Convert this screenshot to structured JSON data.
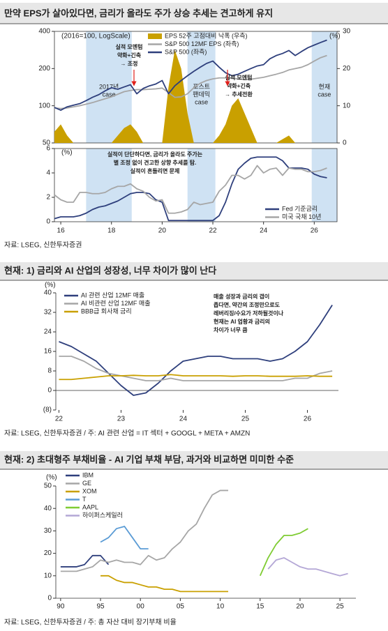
{
  "chart_data": [
    {
      "type": "line",
      "title": "만약 EPS가 살아있다면, 금리가 올라도 주가 상승 추세는 견고하게 유지",
      "y_label": "(2016=100, LogScale)",
      "y2_label": "(%)",
      "y_scale": "log",
      "frame": true,
      "legend": "top-center",
      "region_color": "#cfe2f3",
      "regions": [
        {
          "start": 17,
          "end": 18.8,
          "label": [
            "2017년",
            "case"
          ]
        },
        {
          "start": 21,
          "end": 22.1,
          "label": [
            "포스트",
            "팬데믹",
            "case"
          ]
        },
        {
          "start": 25.9,
          "end": 26.9,
          "label": [
            "현재",
            "case"
          ]
        }
      ],
      "x": [
        15.75,
        16,
        16.25,
        16.5,
        16.75,
        17,
        17.25,
        17.5,
        17.75,
        18,
        18.25,
        18.5,
        18.75,
        19,
        19.25,
        19.5,
        19.75,
        20,
        20.25,
        20.5,
        20.75,
        21,
        21.25,
        21.5,
        21.75,
        22,
        22.25,
        22.5,
        22.75,
        23,
        23.25,
        23.5,
        23.75,
        24,
        24.25,
        24.5,
        24.75,
        25,
        25.25,
        25.5,
        25.75,
        26,
        26.25,
        26.5
      ],
      "xlim": [
        15.75,
        26.9
      ],
      "ylim": [
        50,
        400
      ],
      "yticks": [
        50,
        100,
        200,
        400
      ],
      "y2lim": [
        0,
        30
      ],
      "y2ticks": [
        0,
        10,
        20,
        30
      ],
      "series": [
        {
          "name": "EPS 52주 고점대비 낙폭 (우측)",
          "color": "#c9a000",
          "kind": "area",
          "axis": "y2",
          "values": [
            3,
            5,
            2,
            0,
            0,
            0,
            0,
            0,
            0,
            0,
            2,
            4,
            5,
            3,
            0,
            0,
            0,
            0,
            15,
            25,
            20,
            8,
            0,
            0,
            0,
            0,
            2,
            5,
            10,
            12,
            8,
            4,
            0,
            0,
            0,
            0,
            1,
            2,
            0,
            0,
            0,
            0,
            0,
            0
          ]
        },
        {
          "name": "S&P 500 12MF EPS (좌측)",
          "color": "#a6a6a6",
          "kind": "line",
          "values": [
            96,
            95,
            96,
            98,
            100,
            103,
            106,
            110,
            114,
            118,
            124,
            130,
            133,
            135,
            135,
            136,
            137,
            139,
            128,
            117,
            118,
            125,
            140,
            152,
            160,
            165,
            168,
            168,
            167,
            165,
            163,
            164,
            167,
            170,
            175,
            180,
            186,
            195,
            200,
            205,
            215,
            230,
            245,
            255
          ]
        },
        {
          "name": "S&P 500 (좌측)",
          "color": "#2e3f7c",
          "kind": "line",
          "values": [
            97,
            92,
            98,
            101,
            104,
            110,
            117,
            123,
            132,
            140,
            136,
            142,
            148,
            125,
            138,
            145,
            150,
            160,
            125,
            145,
            160,
            175,
            190,
            205,
            220,
            230,
            205,
            185,
            175,
            180,
            190,
            200,
            210,
            215,
            240,
            255,
            265,
            280,
            255,
            275,
            295,
            310,
            325,
            340
          ]
        }
      ],
      "annotations": [
        {
          "color": "#e0201b",
          "lines": [
            "실적 모멘텀",
            "약화+긴축",
            "→ 조정"
          ]
        },
        {
          "color": "#e0201b",
          "lines": [
            "실적 모멘텀",
            "약화+긴축",
            "→ 추세전환"
          ]
        }
      ]
    },
    {
      "type": "line",
      "y_label": "(%)",
      "frame": true,
      "legend": "bottom-right",
      "region_color": "#cfe2f3",
      "source": "자료: LSEG, 신한투자증권",
      "regions": [
        {
          "start": 17,
          "end": 18.8
        },
        {
          "start": 21,
          "end": 22.1
        },
        {
          "start": 25.9,
          "end": 26.9
        }
      ],
      "x": [
        15.75,
        16,
        16.25,
        16.5,
        16.75,
        17,
        17.25,
        17.5,
        17.75,
        18,
        18.25,
        18.5,
        18.75,
        19,
        19.25,
        19.5,
        19.75,
        20,
        20.25,
        20.5,
        20.75,
        21,
        21.25,
        21.5,
        21.75,
        22,
        22.25,
        22.5,
        22.75,
        23,
        23.25,
        23.5,
        23.75,
        24,
        24.25,
        24.5,
        24.75,
        25,
        25.25,
        25.5,
        25.75,
        26,
        26.25,
        26.5
      ],
      "xlim": [
        15.75,
        26.9
      ],
      "xticks": [
        16,
        18,
        20,
        22,
        24,
        26
      ],
      "ylim": [
        0,
        6
      ],
      "yticks": [
        0,
        2,
        4,
        6
      ],
      "series": [
        {
          "name": "Fed 기준금리",
          "color": "#2e3f7c",
          "kind": "line",
          "values": [
            0.25,
            0.4,
            0.4,
            0.4,
            0.5,
            0.7,
            1.0,
            1.2,
            1.3,
            1.5,
            1.7,
            2.0,
            2.3,
            2.4,
            2.4,
            2.3,
            1.8,
            1.6,
            0.1,
            0.1,
            0.1,
            0.1,
            0.1,
            0.1,
            0.1,
            0.1,
            0.5,
            1.6,
            3.1,
            4.3,
            4.8,
            5.2,
            5.3,
            5.3,
            5.3,
            5.3,
            5.0,
            4.4,
            4.4,
            4.4,
            4.3,
            3.9,
            3.7,
            3.6
          ]
        },
        {
          "name": "미국 국채 10년",
          "color": "#a6a6a6",
          "kind": "line",
          "values": [
            2.2,
            1.8,
            1.6,
            1.6,
            2.4,
            2.4,
            2.3,
            2.3,
            2.4,
            2.7,
            2.9,
            2.9,
            3.1,
            2.7,
            2.5,
            2.0,
            1.7,
            1.8,
            0.7,
            0.7,
            0.8,
            1.0,
            1.6,
            1.4,
            1.5,
            1.6,
            2.5,
            3.0,
            3.8,
            3.8,
            3.5,
            3.8,
            4.6,
            4.0,
            4.3,
            4.4,
            3.8,
            4.4,
            4.3,
            4.3,
            4.1,
            4.1,
            4.2,
            4.4
          ]
        }
      ],
      "annotations": [
        {
          "color": "#2e75b6",
          "lines": [
            "실적이 단단하다면, 금리가 올라도 주가는",
            "별 조정 없이 견고한 상향 추세를 탐.",
            "실적이 흔들리면 문제"
          ]
        }
      ]
    },
    {
      "type": "line",
      "title": "현재: 1) 금리와 AI 산업의 성장성, 너무 차이가 많이 난다",
      "y_label": "(%)",
      "legend": "top-left",
      "source": "자료: LSEG, 신한투자증권 / 주: AI 관련 산업 = IT 섹터 + GOOGL + META + AMZN",
      "x": [
        22.0,
        22.2,
        22.4,
        22.6,
        22.8,
        23.0,
        23.2,
        23.4,
        23.6,
        23.8,
        24.0,
        24.2,
        24.4,
        24.6,
        24.8,
        25.0,
        25.2,
        25.4,
        25.6,
        25.8,
        26.0,
        26.2,
        26.4
      ],
      "xlim": [
        21.95,
        26.5
      ],
      "xticks": [
        22,
        23,
        24,
        25,
        26
      ],
      "ylim": [
        -8,
        40
      ],
      "yticks": [
        {
          "value": -8,
          "label": "(8)"
        },
        0,
        8,
        16,
        24,
        32,
        40
      ],
      "series": [
        {
          "name": "AI 관련 산업 12MF 매출",
          "color": "#2e3f7c",
          "kind": "line",
          "values": [
            20,
            18,
            15,
            12,
            7,
            2,
            -2,
            -1,
            3,
            8,
            12,
            13,
            14,
            14,
            13,
            13,
            13,
            12,
            13,
            16,
            20,
            27,
            35
          ]
        },
        {
          "name": "AI 비관련 산업 12MF 매출",
          "color": "#a6a6a6",
          "kind": "line",
          "values": [
            14,
            14,
            12,
            9,
            7,
            6,
            5,
            4,
            4,
            5,
            4,
            4,
            4,
            4,
            4,
            4,
            4,
            4,
            4,
            5,
            5,
            7,
            8
          ]
        },
        {
          "name": "BBB급 회사채 금리",
          "color": "#c9a000",
          "kind": "line",
          "values": [
            4.5,
            4.5,
            5,
            5.5,
            6,
            6,
            6.2,
            6,
            6,
            6.5,
            6,
            6,
            6,
            6,
            5.8,
            6,
            6,
            5.8,
            5.8,
            5.8,
            6,
            5.8,
            5.8
          ]
        }
      ],
      "annotations": [
        {
          "color": "#000000",
          "lines": [
            "매출 성장과 금리의 갭이",
            "좁다면, 약간의 조정만으로도",
            "레버리징/수요가 저하될것이나",
            "현재는 AI 업황과 금리의",
            "차이가 너무 큼"
          ]
        }
      ]
    },
    {
      "type": "line",
      "title": "현재: 2) 초대형주 부채비율 - AI 기업 부채 부담, 과거와 비교하면 미미한 수준",
      "y_label": "(%)",
      "legend": "top-left",
      "source": "자료: LSEG, 신한투자증권 / 주: 총 자산 대비 장기부채 비율",
      "x": [
        1990,
        1991,
        1992,
        1993,
        1994,
        1995,
        1996,
        1997,
        1998,
        1999,
        2000,
        2001,
        2002,
        2003,
        2004,
        2005,
        2006,
        2007,
        2008,
        2009,
        2010,
        2011,
        2012,
        2013,
        2014,
        2015,
        2016,
        2017,
        2018,
        2019,
        2020,
        2021,
        2022,
        2023,
        2024,
        2025,
        2026
      ],
      "xlim": [
        1989.4,
        2027
      ],
      "xticks": [
        {
          "value": 1990,
          "label": "90"
        },
        {
          "value": 1995,
          "label": "95"
        },
        {
          "value": 2000,
          "label": "00"
        },
        {
          "value": 2005,
          "label": "05"
        },
        {
          "value": 2010,
          "label": "10"
        },
        {
          "value": 2015,
          "label": "15"
        },
        {
          "value": 2020,
          "label": "20"
        },
        {
          "value": 2025,
          "label": "25"
        }
      ],
      "ylim": [
        0,
        50
      ],
      "yticks": [
        0,
        10,
        20,
        30,
        40,
        50
      ],
      "series": [
        {
          "name": "IBM",
          "color": "#2e3f7c",
          "kind": "line",
          "values": [
            14,
            14,
            14,
            15,
            19,
            19,
            15,
            null,
            null,
            null,
            null,
            null,
            null,
            null,
            null,
            null,
            null,
            null,
            null,
            null,
            null,
            null,
            null,
            null,
            null,
            null,
            null,
            null,
            null,
            null,
            null,
            null,
            null,
            null,
            null,
            null,
            null
          ]
        },
        {
          "name": "GE",
          "color": "#a6a6a6",
          "kind": "line",
          "values": [
            12,
            12,
            12,
            13,
            14,
            17,
            16,
            17,
            16,
            16,
            15,
            19,
            17,
            18,
            22,
            25,
            30,
            33,
            40,
            46,
            48,
            48,
            null,
            null,
            null,
            null,
            null,
            null,
            null,
            null,
            null,
            null,
            null,
            null,
            null,
            null,
            null
          ]
        },
        {
          "name": "XOM",
          "color": "#c9a000",
          "kind": "line",
          "values": [
            null,
            null,
            null,
            null,
            null,
            10,
            10,
            8,
            7,
            7,
            6,
            5,
            5,
            4,
            4,
            3,
            3,
            3,
            3,
            3,
            3,
            3,
            null,
            null,
            null,
            null,
            null,
            null,
            null,
            null,
            null,
            null,
            null,
            null,
            null,
            null,
            null
          ]
        },
        {
          "name": "T",
          "color": "#5a9bd5",
          "kind": "line",
          "values": [
            null,
            null,
            null,
            null,
            null,
            25,
            27,
            31,
            32,
            27,
            22,
            22,
            null,
            null,
            null,
            null,
            null,
            null,
            null,
            null,
            null,
            null,
            null,
            null,
            null,
            null,
            null,
            null,
            null,
            null,
            null,
            null,
            null,
            null,
            null,
            null,
            null
          ]
        },
        {
          "name": "AAPL",
          "color": "#7fcc33",
          "kind": "line",
          "values": [
            null,
            null,
            null,
            null,
            null,
            null,
            null,
            null,
            null,
            null,
            null,
            null,
            null,
            null,
            null,
            null,
            null,
            null,
            null,
            null,
            null,
            null,
            null,
            null,
            null,
            10,
            18,
            24,
            28,
            28,
            29,
            31,
            null,
            null,
            null,
            null,
            null
          ]
        },
        {
          "name": "하이퍼스케일러",
          "color": "#b4a7d6",
          "kind": "line",
          "values": [
            null,
            null,
            null,
            null,
            null,
            null,
            null,
            null,
            null,
            null,
            null,
            null,
            null,
            null,
            null,
            null,
            null,
            null,
            null,
            null,
            null,
            null,
            null,
            null,
            null,
            null,
            13,
            17,
            18,
            16,
            14,
            13,
            13,
            12,
            11,
            10,
            11
          ]
        }
      ]
    }
  ]
}
